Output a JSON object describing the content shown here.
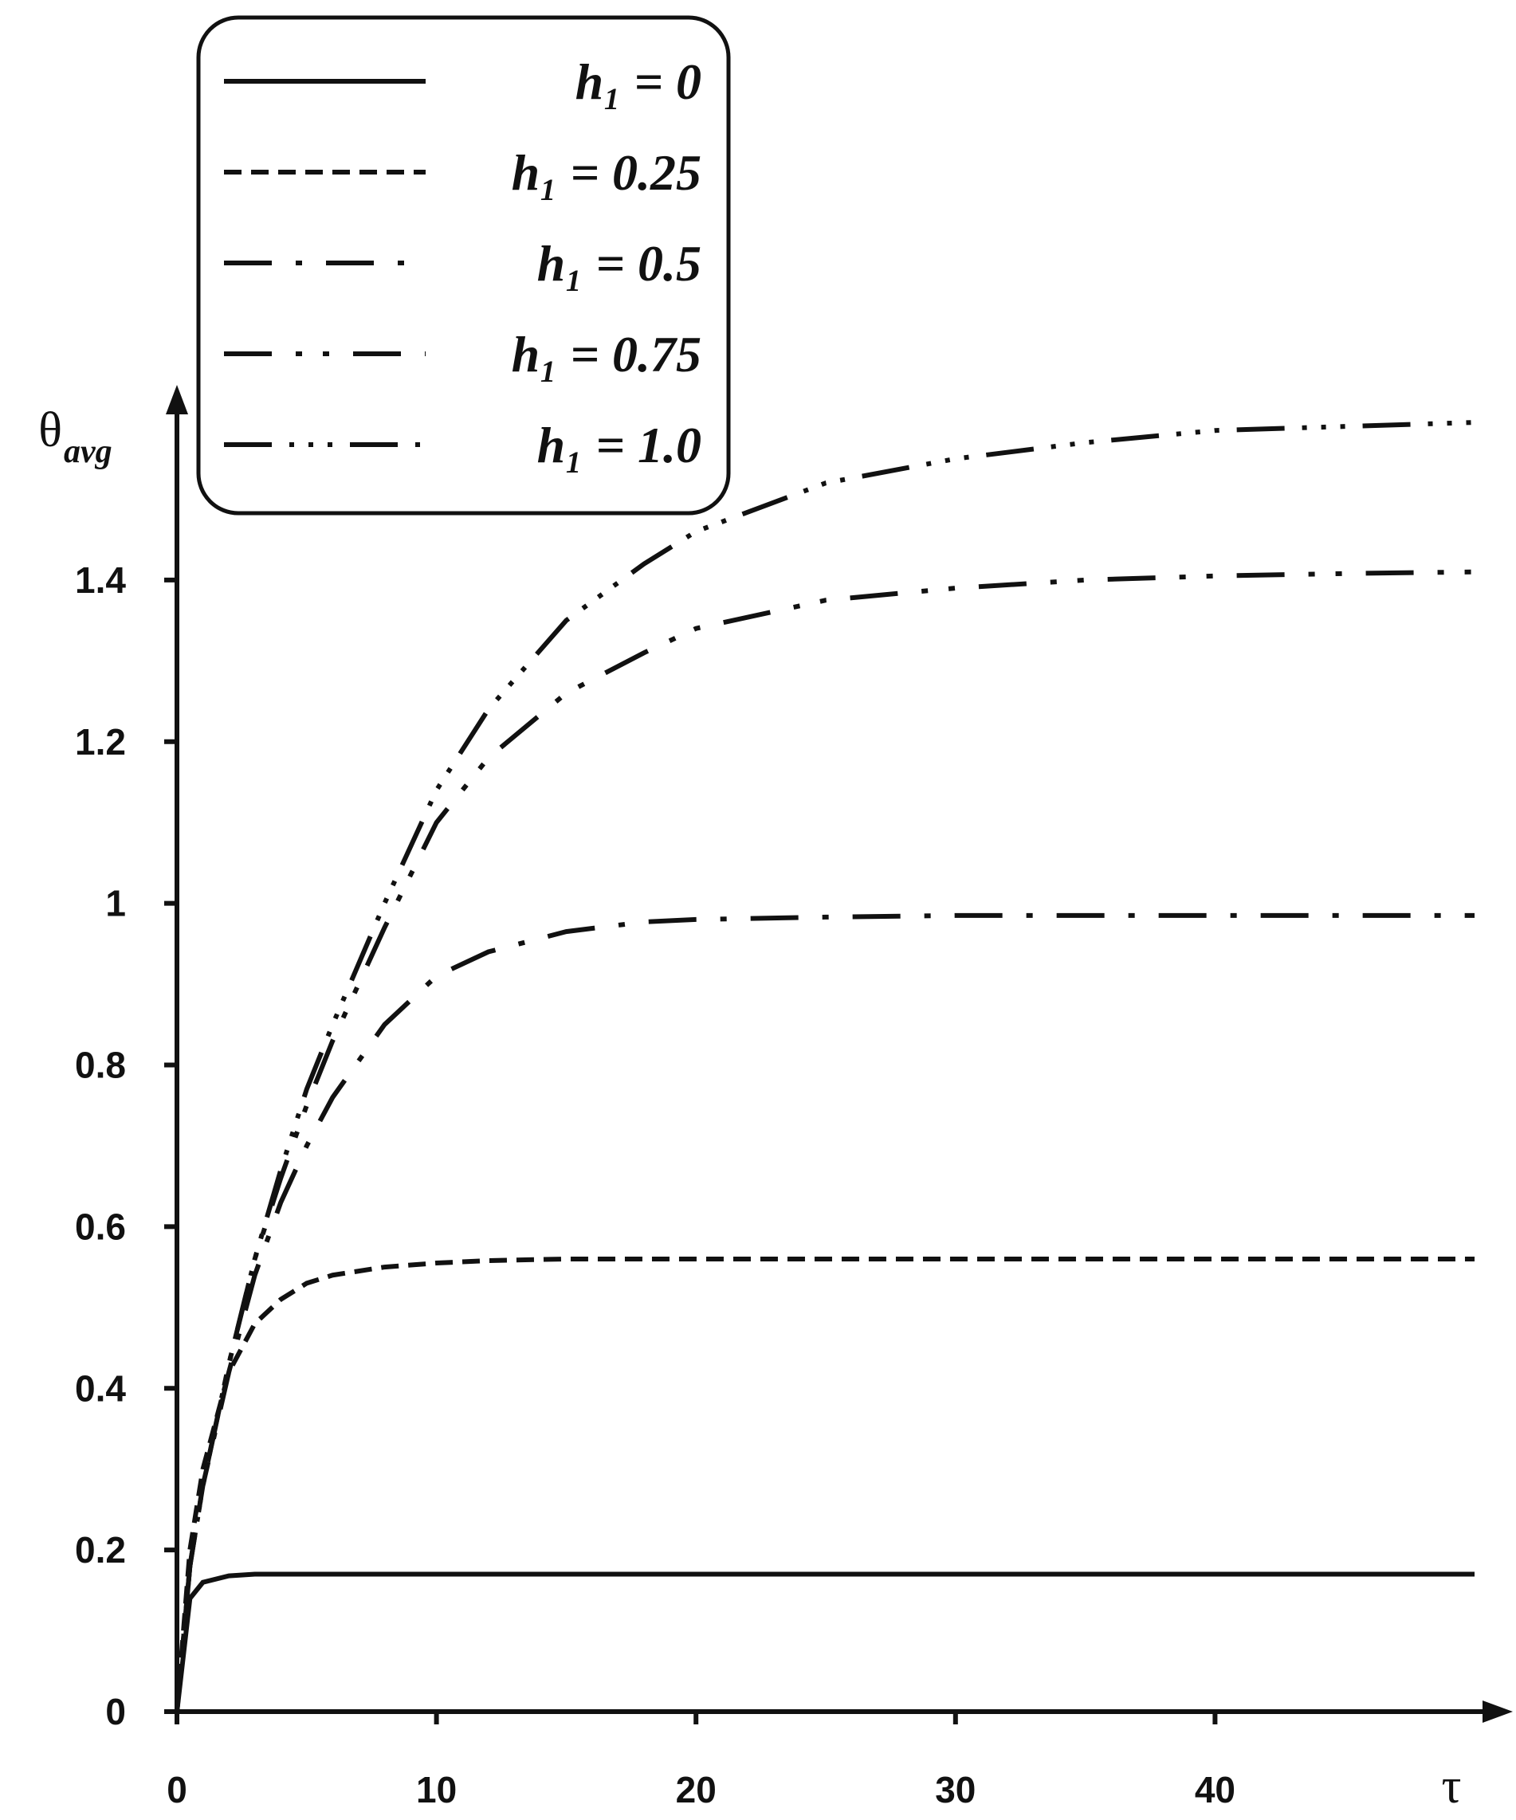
{
  "chart_data": {
    "type": "line",
    "x_label": "τ",
    "y_label": {
      "symbol": "θ",
      "subscript": "avg"
    },
    "x": [
      0,
      0.5,
      1,
      2,
      3,
      4,
      5,
      6,
      8,
      10,
      12,
      15,
      18,
      20,
      25,
      30,
      35,
      40,
      45,
      50
    ],
    "series": [
      {
        "name": "h₁ = 0",
        "color": "#111111",
        "dash": "",
        "values": [
          0,
          0.14,
          0.16,
          0.168,
          0.17,
          0.17,
          0.17,
          0.17,
          0.17,
          0.17,
          0.17,
          0.17,
          0.17,
          0.17,
          0.17,
          0.17,
          0.17,
          0.17,
          0.17,
          0.17
        ]
      },
      {
        "name": "h₁ = 0.25",
        "color": "#111111",
        "dash": "22 12",
        "values": [
          0,
          0.2,
          0.3,
          0.42,
          0.48,
          0.51,
          0.53,
          0.54,
          0.55,
          0.555,
          0.558,
          0.56,
          0.56,
          0.56,
          0.56,
          0.56,
          0.56,
          0.56,
          0.56,
          0.56
        ]
      },
      {
        "name": "h₁ = 0.5",
        "color": "#111111",
        "dash": "60 30 8 30",
        "values": [
          0,
          0.18,
          0.28,
          0.42,
          0.54,
          0.63,
          0.7,
          0.76,
          0.85,
          0.91,
          0.94,
          0.965,
          0.977,
          0.98,
          0.983,
          0.985,
          0.985,
          0.985,
          0.985,
          0.985
        ]
      },
      {
        "name": "h₁ = 0.75",
        "color": "#111111",
        "dash": "60 30 8 26 8 30",
        "values": [
          0,
          0.18,
          0.28,
          0.43,
          0.56,
          0.66,
          0.75,
          0.83,
          0.97,
          1.1,
          1.18,
          1.26,
          1.31,
          1.34,
          1.375,
          1.39,
          1.4,
          1.405,
          1.408,
          1.41
        ]
      },
      {
        "name": "h₁ = 1.0",
        "color": "#111111",
        "dash": "60 22 6 18 6 18 6 22",
        "values": [
          0,
          0.18,
          0.28,
          0.43,
          0.56,
          0.67,
          0.77,
          0.85,
          1.0,
          1.14,
          1.24,
          1.35,
          1.42,
          1.46,
          1.52,
          1.55,
          1.57,
          1.585,
          1.59,
          1.595
        ]
      }
    ],
    "xlim": [
      0,
      50
    ],
    "ylim": [
      0,
      1.6
    ],
    "xticks": [
      0,
      10,
      20,
      30,
      40
    ],
    "yticks": [
      0,
      0.2,
      0.4,
      0.6,
      0.8,
      1,
      1.2,
      1.4
    ],
    "legend": "upper left"
  }
}
